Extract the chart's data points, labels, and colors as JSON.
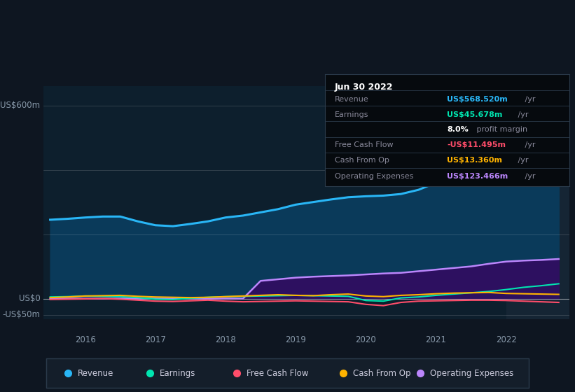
{
  "bg_color": "#0e1621",
  "plot_bg_color": "#0d1f2d",
  "highlight_bg_color": "#152534",
  "title": "Jun 30 2022",
  "ylabel_top": "US$600m",
  "ylabel_zero": "US$0",
  "ylabel_neg": "-US$50m",
  "ylim": [
    -65,
    660
  ],
  "xlim_start": 2015.4,
  "xlim_end": 2022.9,
  "highlight_x_start": 2022.0,
  "highlight_x_end": 2022.9,
  "years": [
    2015.5,
    2015.75,
    2016.0,
    2016.25,
    2016.5,
    2016.75,
    2017.0,
    2017.25,
    2017.5,
    2017.75,
    2018.0,
    2018.25,
    2018.5,
    2018.75,
    2019.0,
    2019.25,
    2019.5,
    2019.75,
    2020.0,
    2020.25,
    2020.5,
    2020.75,
    2021.0,
    2021.25,
    2021.5,
    2021.75,
    2022.0,
    2022.25,
    2022.5,
    2022.75
  ],
  "revenue": [
    245,
    248,
    252,
    255,
    255,
    240,
    228,
    225,
    232,
    240,
    252,
    258,
    268,
    278,
    292,
    300,
    308,
    315,
    318,
    320,
    325,
    338,
    360,
    385,
    415,
    455,
    490,
    520,
    555,
    580
  ],
  "earnings": [
    5,
    6,
    8,
    7,
    6,
    3,
    -2,
    -3,
    1,
    4,
    6,
    7,
    8,
    9,
    10,
    9,
    8,
    7,
    -6,
    -8,
    2,
    5,
    10,
    14,
    18,
    22,
    28,
    35,
    40,
    46
  ],
  "free_cash_flow": [
    -3,
    -2,
    -1,
    0,
    -2,
    -5,
    -8,
    -9,
    -7,
    -5,
    -8,
    -10,
    -9,
    -8,
    -7,
    -8,
    -9,
    -10,
    -18,
    -22,
    -12,
    -8,
    -7,
    -6,
    -5,
    -5,
    -6,
    -8,
    -10,
    -12
  ],
  "cash_from_op": [
    3,
    5,
    8,
    9,
    10,
    7,
    5,
    4,
    3,
    4,
    6,
    8,
    10,
    12,
    10,
    9,
    12,
    14,
    8,
    6,
    10,
    12,
    15,
    17,
    18,
    19,
    16,
    15,
    14,
    13
  ],
  "operating_expenses": [
    0,
    0,
    0,
    0,
    0,
    0,
    0,
    0,
    0,
    0,
    0,
    0,
    55,
    60,
    65,
    68,
    70,
    72,
    75,
    78,
    80,
    85,
    90,
    95,
    100,
    108,
    115,
    118,
    120,
    123
  ],
  "revenue_color": "#29b6f6",
  "earnings_color": "#00e5b0",
  "fcf_color": "#ff4d6a",
  "cfo_color": "#ffb300",
  "opex_color": "#bb86fc",
  "revenue_fill_color": "#0a3a5a",
  "opex_fill_color": "#2d1060",
  "legend_items": [
    {
      "label": "Revenue",
      "color": "#29b6f6"
    },
    {
      "label": "Earnings",
      "color": "#00e5b0"
    },
    {
      "label": "Free Cash Flow",
      "color": "#ff4d6a"
    },
    {
      "label": "Cash From Op",
      "color": "#ffb300"
    },
    {
      "label": "Operating Expenses",
      "color": "#bb86fc"
    }
  ],
  "table_rows": [
    {
      "label": "Revenue",
      "value": "US$568.520m",
      "suffix": " /yr",
      "value_color": "#29b6f6"
    },
    {
      "label": "Earnings",
      "value": "US$45.678m",
      "suffix": " /yr",
      "value_color": "#00e5b0"
    },
    {
      "label": "",
      "value": "8.0%",
      "suffix": " profit margin",
      "value_color": "#ffffff"
    },
    {
      "label": "Free Cash Flow",
      "value": "-US$11.495m",
      "suffix": " /yr",
      "value_color": "#ff4d6a"
    },
    {
      "label": "Cash From Op",
      "value": "US$13.360m",
      "suffix": " /yr",
      "value_color": "#ffb300"
    },
    {
      "label": "Operating Expenses",
      "value": "US$123.466m",
      "suffix": " /yr",
      "value_color": "#bb86fc"
    }
  ],
  "divider_color": "#2a3a4a",
  "label_color": "#888899",
  "suffix_color": "#888899",
  "axis_label_color": "#8899aa",
  "grid_color": "#1a2d3d",
  "x_ticks": [
    2016,
    2017,
    2018,
    2019,
    2020,
    2021,
    2022
  ]
}
